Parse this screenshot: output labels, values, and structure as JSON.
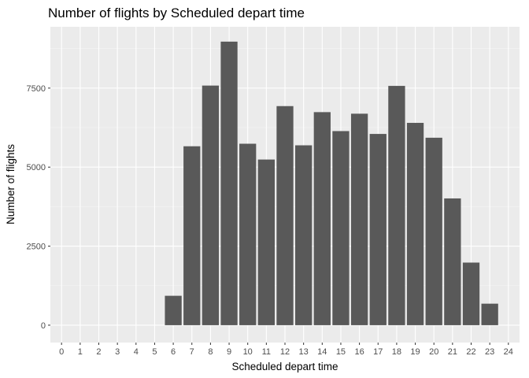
{
  "chart_data": {
    "type": "bar",
    "title": "Number of flights by Scheduled depart time",
    "xlabel": "Scheduled depart time",
    "ylabel": "Number of flights",
    "categories": [
      "0",
      "1",
      "2",
      "3",
      "4",
      "5",
      "6",
      "7",
      "8",
      "9",
      "10",
      "11",
      "12",
      "13",
      "14",
      "15",
      "16",
      "17",
      "18",
      "19",
      "20",
      "21",
      "22",
      "23",
      "24"
    ],
    "values": [
      0,
      0,
      0,
      0,
      0,
      0,
      930,
      5660,
      7580,
      8970,
      5740,
      5240,
      6930,
      5690,
      6740,
      6140,
      6690,
      6050,
      7570,
      6400,
      5930,
      4010,
      1980,
      680,
      0
    ],
    "yticks": [
      0,
      2500,
      5000,
      7500
    ],
    "ylim": [
      -550,
      9440
    ],
    "grid": true,
    "colors": {
      "panel": "#ebebeb",
      "bar": "#595959",
      "grid_major": "#ffffff",
      "grid_minor": "#f5f5f5",
      "tick": "#333333"
    }
  }
}
